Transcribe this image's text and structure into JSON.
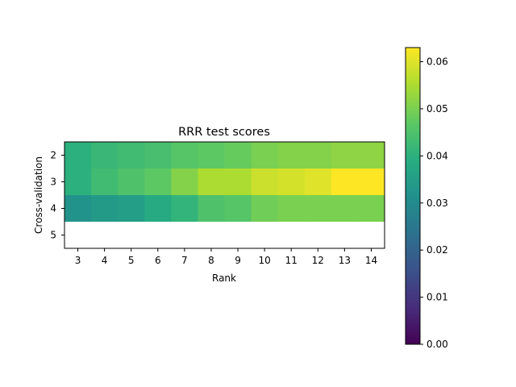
{
  "chart_data": {
    "type": "heatmap",
    "title": "RRR test scores",
    "xlabel": "Rank",
    "ylabel": "Cross-validation",
    "x": [
      3,
      4,
      5,
      6,
      7,
      8,
      9,
      10,
      11,
      12,
      13,
      14
    ],
    "y": [
      2,
      3,
      4,
      5
    ],
    "values": [
      [
        0.04,
        0.042,
        0.043,
        0.044,
        0.046,
        0.047,
        0.048,
        0.05,
        0.051,
        0.051,
        0.052,
        0.052
      ],
      [
        0.04,
        0.043,
        0.045,
        0.047,
        0.051,
        0.055,
        0.055,
        0.058,
        0.059,
        0.06,
        0.063,
        0.063
      ],
      [
        0.032,
        0.034,
        0.035,
        0.038,
        0.041,
        0.045,
        0.046,
        0.049,
        0.05,
        0.05,
        0.05,
        0.05
      ],
      [
        null,
        null,
        null,
        null,
        null,
        null,
        null,
        null,
        null,
        null,
        null,
        null
      ]
    ],
    "colorbar": {
      "colormap": "viridis",
      "range": [
        0.0,
        0.063
      ],
      "ticks": [
        "0.00",
        "0.01",
        "0.02",
        "0.03",
        "0.04",
        "0.05",
        "0.06"
      ]
    }
  }
}
